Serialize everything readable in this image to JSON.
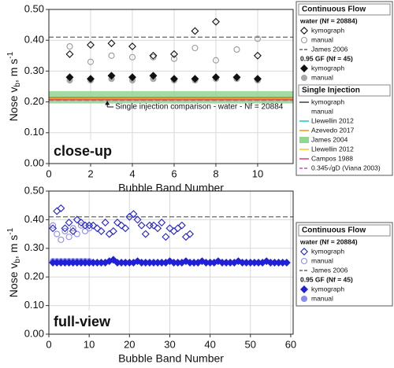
{
  "chart_data": [
    {
      "type": "scatter",
      "xlabel": "Bubble Band Number",
      "ylabel": [
        "Nose v",
        "b",
        ", m s",
        "-1"
      ],
      "panel_label": "close-up",
      "xlim": [
        0,
        11.7
      ],
      "ylim": [
        0,
        0.5
      ],
      "xticks": [
        0,
        2,
        4,
        6,
        8,
        10
      ],
      "yticks": [
        {
          "value": 0,
          "label": "0.00"
        },
        {
          "value": 0.1,
          "label": "0.10"
        },
        {
          "value": 0.2,
          "label": "0.20"
        },
        {
          "value": 0.3,
          "label": "0.30"
        },
        {
          "value": 0.4,
          "label": "0.40"
        },
        {
          "value": 0.5,
          "label": "0.50"
        }
      ],
      "grid": true,
      "bands": [
        {
          "range": [
            0.195,
            0.235
          ],
          "color": "#93d593"
        }
      ],
      "hlines": [
        {
          "value": 0.41,
          "color": "#666666",
          "dash": true
        },
        {
          "value": 0.215,
          "color": "#00c8c8",
          "dash": false
        },
        {
          "value": 0.212,
          "color": "#f08c00",
          "dash": false
        },
        {
          "value": 0.209,
          "color": "#f5c400",
          "dash": false
        },
        {
          "value": 0.207,
          "color": "#e0305a",
          "dash": false
        },
        {
          "value": 0.205,
          "color": "#e040c0",
          "dash": true
        }
      ],
      "annotation": {
        "text": "Single injection comparison - water - Nf = 20884",
        "x": 2.8,
        "y": 0.176,
        "target": 0.203
      },
      "series": [
        {
          "marker": "circle-open",
          "color": "#9a9a9a",
          "x": [
            1,
            2,
            3,
            4,
            5,
            6,
            7,
            8,
            9,
            10
          ],
          "values": [
            0.38,
            0.33,
            0.35,
            0.345,
            0.345,
            0.34,
            0.375,
            0.335,
            0.37,
            0.405
          ]
        },
        {
          "marker": "diamond-open",
          "color": "#111111",
          "x": [
            1,
            2,
            3,
            4,
            5,
            6,
            7,
            8,
            9,
            10
          ],
          "values": [
            0.355,
            0.385,
            0.39,
            0.38,
            0.35,
            0.355,
            0.43,
            0.46,
            null,
            0.35
          ]
        },
        {
          "marker": "circle",
          "color": "#a8a8a8",
          "x": [
            1,
            2,
            3,
            4,
            5,
            6,
            7,
            8,
            9,
            10
          ],
          "values": [
            0.27,
            0.27,
            0.275,
            0.27,
            0.275,
            0.27,
            0.27,
            0.275,
            0.275,
            0.27
          ]
        },
        {
          "marker": "diamond",
          "color": "#111111",
          "x": [
            1,
            2,
            3,
            4,
            5,
            6,
            7,
            8,
            9,
            10
          ],
          "values": [
            0.28,
            0.275,
            0.285,
            0.28,
            0.285,
            0.275,
            0.275,
            0.28,
            0.28,
            0.275
          ]
        }
      ],
      "legend": [
        {
          "text": "Continuous Flow",
          "marker": "header"
        },
        {
          "text": "water (Nf = 20884)",
          "marker": "group"
        },
        {
          "text": "kymograph",
          "marker": "diamond-open",
          "color": "#111111"
        },
        {
          "text": "manual",
          "marker": "circle-open",
          "color": "#9a9a9a"
        },
        {
          "text": "James 2006",
          "marker": "dash",
          "color": "#666666"
        },
        {
          "text": "0.95 GF (Nf = 45)",
          "marker": "group"
        },
        {
          "text": "kymograph",
          "marker": "diamond",
          "color": "#111111"
        },
        {
          "text": "manual",
          "marker": "circle",
          "color": "#a8a8a8"
        },
        {
          "text": "Single Injection",
          "marker": "header"
        },
        {
          "text": "kymograph",
          "marker": "line",
          "color": "#333333"
        },
        {
          "text": "manual",
          "marker": "none"
        },
        {
          "text": "Llewellin 2012",
          "marker": "line",
          "color": "#00c8c8"
        },
        {
          "text": "Azevedo 2017",
          "marker": "line",
          "color": "#f08c00"
        },
        {
          "text": "James 2004",
          "marker": "rect",
          "color": "#93d593"
        },
        {
          "text": "Llewellin 2012",
          "marker": "line",
          "color": "#f5c400"
        },
        {
          "text": "Campos 1988",
          "marker": "line",
          "color": "#e0305a"
        },
        {
          "text": "0.345√gD (Viana 2003)",
          "marker": "dash",
          "color": "#e040c0"
        }
      ]
    },
    {
      "type": "scatter",
      "xlabel": "Bubble Band Number",
      "ylabel": [
        "Nose v",
        "b",
        ", m s",
        "-1"
      ],
      "panel_label": "full-view",
      "xlim": [
        0,
        60.6
      ],
      "ylim": [
        0,
        0.5
      ],
      "xticks": [
        0,
        10,
        20,
        30,
        40,
        50,
        60
      ],
      "yticks": [
        {
          "value": 0,
          "label": "0.00"
        },
        {
          "value": 0.1,
          "label": "0.10"
        },
        {
          "value": 0.2,
          "label": "0.20"
        },
        {
          "value": 0.3,
          "label": "0.30"
        },
        {
          "value": 0.4,
          "label": "0.40"
        },
        {
          "value": 0.5,
          "label": "0.50"
        }
      ],
      "grid": true,
      "bands": [],
      "hlines": [
        {
          "value": 0.41,
          "color": "#666666",
          "dash": true
        }
      ],
      "series": [
        {
          "marker": "circle-open",
          "color": "#8c8cf0",
          "x": [
            1,
            2,
            3,
            4,
            5,
            6,
            7,
            8,
            9,
            10
          ],
          "values": [
            0.38,
            0.35,
            0.33,
            0.36,
            0.34,
            0.37,
            0.35,
            0.38,
            0.36,
            0.37
          ]
        },
        {
          "marker": "diamond-open",
          "color": "#2020d8",
          "x": [
            1,
            2,
            3,
            4,
            5,
            6,
            7,
            8,
            9,
            10,
            11,
            12,
            13,
            14,
            15,
            16,
            17,
            18,
            19,
            20,
            21,
            22,
            23,
            24,
            25,
            26,
            27,
            28,
            29,
            30,
            31,
            32,
            33,
            34,
            35
          ],
          "values": [
            0.37,
            0.43,
            0.44,
            0.37,
            0.39,
            0.36,
            0.4,
            0.39,
            0.38,
            0.38,
            0.38,
            0.37,
            0.36,
            0.39,
            0.35,
            0.36,
            0.39,
            0.38,
            0.37,
            0.41,
            0.42,
            0.4,
            0.38,
            0.35,
            0.38,
            0.38,
            0.37,
            0.39,
            0.34,
            0.37,
            0.36,
            0.37,
            0.38,
            0.34,
            0.35
          ]
        },
        {
          "marker": "circle",
          "color": "#8c8cf0",
          "x": [
            1,
            2,
            3,
            4,
            5,
            6,
            7,
            8,
            9,
            10
          ],
          "values": [
            0.255,
            0.255,
            0.255,
            0.255,
            0.255,
            0.255,
            0.255,
            0.255,
            0.255,
            0.255
          ]
        },
        {
          "marker": "diamond",
          "color": "#2020d8",
          "x": [
            1,
            2,
            3,
            4,
            5,
            6,
            7,
            8,
            9,
            10,
            11,
            12,
            13,
            14,
            15,
            16,
            17,
            18,
            19,
            20,
            21,
            22,
            23,
            24,
            25,
            26,
            27,
            28,
            29,
            30,
            31,
            32,
            33,
            34,
            35,
            36,
            37,
            38,
            39,
            40,
            41,
            42,
            43,
            44,
            45,
            46,
            47,
            48,
            49,
            50,
            51,
            52,
            53,
            54,
            55,
            56,
            57,
            58,
            59
          ],
          "values": [
            0.25,
            0.25,
            0.25,
            0.25,
            0.25,
            0.25,
            0.25,
            0.25,
            0.25,
            0.25,
            0.25,
            0.25,
            0.25,
            0.25,
            0.255,
            0.26,
            0.25,
            0.25,
            0.25,
            0.25,
            0.25,
            0.255,
            0.25,
            0.25,
            0.25,
            0.25,
            0.25,
            0.25,
            0.25,
            0.255,
            0.25,
            0.25,
            0.25,
            0.255,
            0.25,
            0.25,
            0.25,
            0.255,
            0.25,
            0.25,
            0.25,
            0.255,
            0.25,
            0.25,
            0.25,
            0.25,
            0.255,
            0.25,
            0.25,
            0.25,
            0.25,
            0.25,
            0.25,
            0.255,
            0.25,
            0.25,
            0.25,
            0.25,
            0.25
          ]
        }
      ],
      "legend": [
        {
          "text": "Continuous Flow",
          "marker": "header"
        },
        {
          "text": "water (Nf = 20884)",
          "marker": "group"
        },
        {
          "text": "kymograph",
          "marker": "diamond-open",
          "color": "#2020d8"
        },
        {
          "text": "manual",
          "marker": "circle-open",
          "color": "#8c8cf0"
        },
        {
          "text": "James 2006",
          "marker": "dash",
          "color": "#666666"
        },
        {
          "text": "0.95 GF (Nf = 45)",
          "marker": "group"
        },
        {
          "text": "kymograph",
          "marker": "diamond",
          "color": "#2020d8"
        },
        {
          "text": "manual",
          "marker": "circle",
          "color": "#8c8cf0"
        }
      ]
    }
  ]
}
